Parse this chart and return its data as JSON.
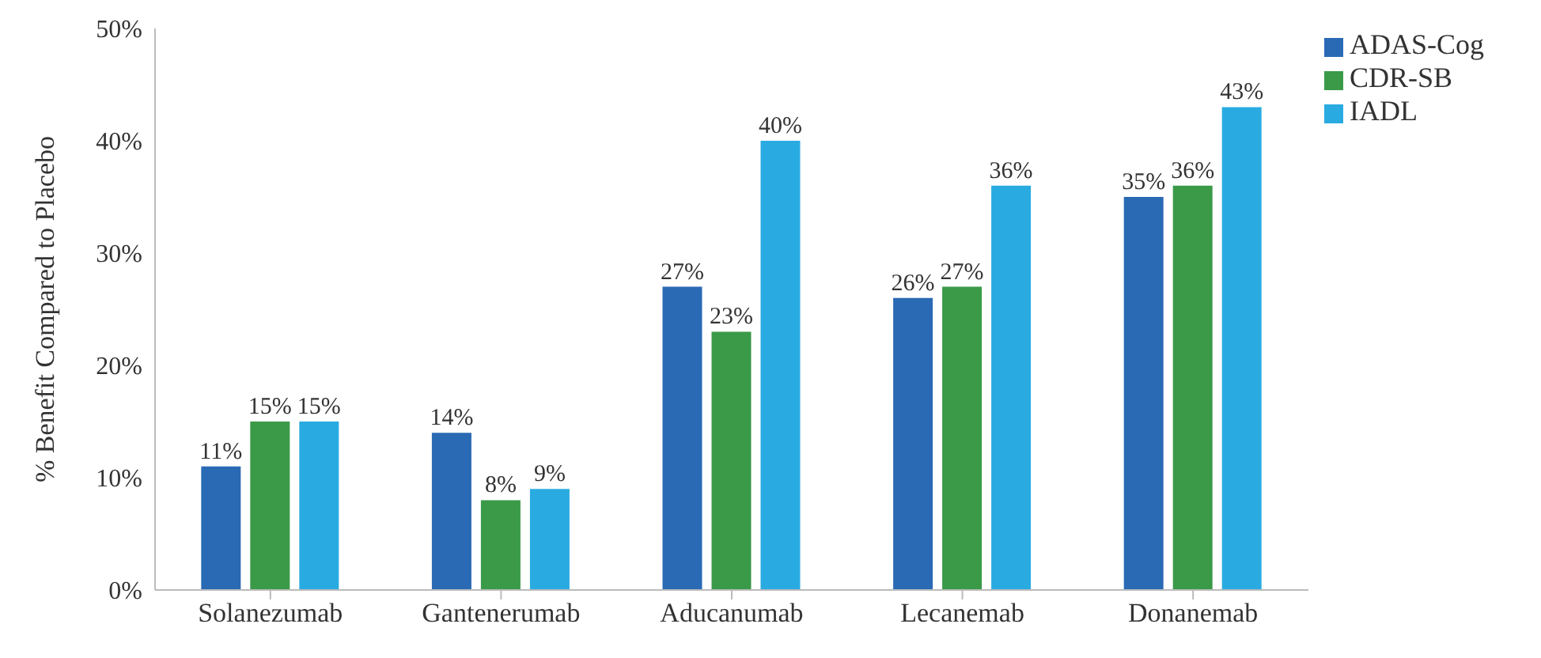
{
  "chart_data": {
    "type": "bar",
    "ylabel": "% Benefit Compared to Placebo",
    "categories": [
      "Solanezumab",
      "Gantenerumab",
      "Aducanumab",
      "Lecanemab",
      "Donanemab"
    ],
    "series": [
      {
        "name": "ADAS-Cog",
        "color": "#2a6ab4",
        "values": [
          11,
          14,
          27,
          26,
          35
        ],
        "value_labels": [
          "11%",
          "14%",
          "27%",
          "26%",
          "35%"
        ]
      },
      {
        "name": "CDR-SB",
        "color": "#3a9a48",
        "values": [
          15,
          8,
          23,
          27,
          36
        ],
        "value_labels": [
          "15%",
          "8%",
          "23%",
          "27%",
          "36%"
        ]
      },
      {
        "name": "IADL",
        "color": "#29abe2",
        "values": [
          15,
          9,
          40,
          36,
          43
        ],
        "value_labels": [
          "15%",
          "9%",
          "40%",
          "36%",
          "43%"
        ]
      }
    ],
    "ylim": [
      0,
      50
    ],
    "yticks": [
      {
        "value": 0,
        "label": "0%"
      },
      {
        "value": 10,
        "label": "10%"
      },
      {
        "value": 20,
        "label": "20%"
      },
      {
        "value": 30,
        "label": "30%"
      },
      {
        "value": 40,
        "label": "40%"
      },
      {
        "value": 50,
        "label": "50%"
      }
    ],
    "grid": false,
    "legend": "top right"
  }
}
